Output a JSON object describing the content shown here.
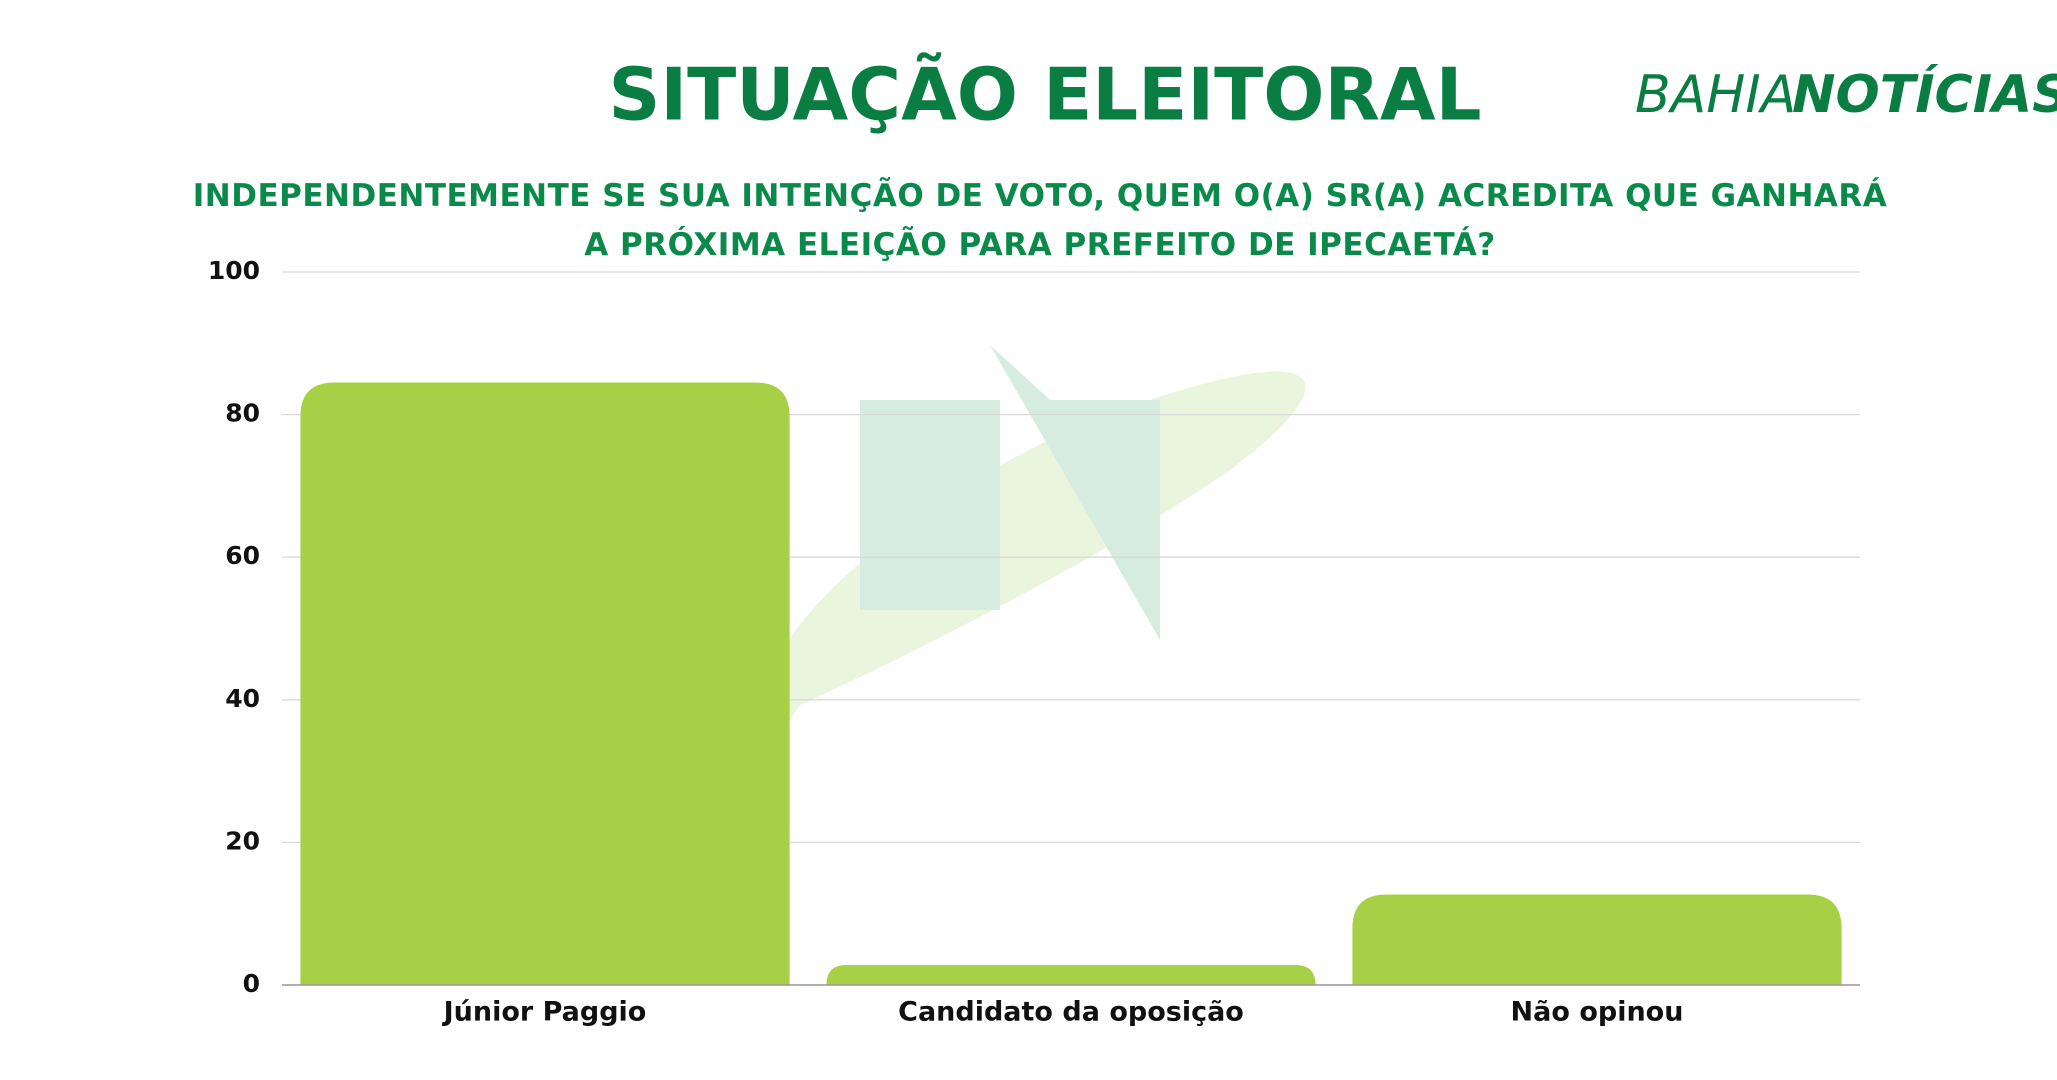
{
  "brand": {
    "first": "BAHIA",
    "second": "NOTÍCIAS"
  },
  "chart_data": {
    "type": "bar",
    "title": "SITUAÇÃO ELEITORAL",
    "subtitle": "INDEPENDENTEMENTE SE SUA INTENÇÃO DE VOTO, QUEM O(A) SR(A) ACREDITA QUE GANHARÁ A PRÓXIMA ELEIÇÃO PARA PREFEITO DE IPECAETÁ?",
    "categories": [
      "Júnior Paggio",
      "Candidato da oposição",
      "Não opinou"
    ],
    "values": [
      84.5,
      2.8,
      12.7
    ],
    "color": "#a8d046",
    "ylim": [
      0,
      100
    ],
    "yticks": [
      0,
      20,
      40,
      60,
      80,
      100
    ],
    "grid": true
  }
}
